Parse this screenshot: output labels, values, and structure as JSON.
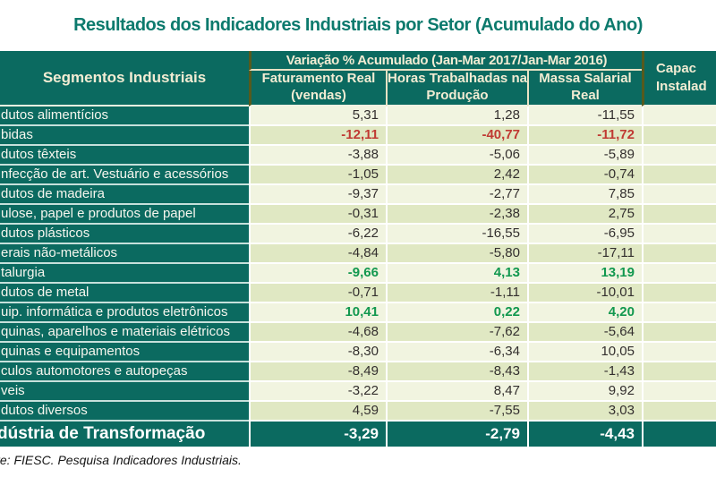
{
  "chart_data": {
    "type": "table",
    "title": "Resultados dos Indicadores Industriais por Setor (Acumulado do Ano)",
    "left_header": "Segmentos Industriais",
    "group_header": "Variação % Acumulado (Jan-Mar 2017/Jan-Mar 2016)",
    "value_columns": [
      "Faturamento Real (vendas)",
      "Horas Trabalhadas na Produção",
      "Massa Salarial Real"
    ],
    "capacity_header_lines": [
      "Capac",
      "Instalad"
    ],
    "rows": [
      {
        "segment": "dutos alimentícios",
        "values": [
          "5,31",
          "1,28",
          "-11,55"
        ],
        "emphasis": "none"
      },
      {
        "segment": "bidas",
        "values": [
          "-12,11",
          "-40,77",
          "-11,72"
        ],
        "emphasis": "red"
      },
      {
        "segment": "dutos têxteis",
        "values": [
          "-3,88",
          "-5,06",
          "-5,89"
        ],
        "emphasis": "none"
      },
      {
        "segment": "nfecção de art. Vestuário e acessórios",
        "values": [
          "-1,05",
          "2,42",
          "-0,74"
        ],
        "emphasis": "none"
      },
      {
        "segment": "dutos de madeira",
        "values": [
          "-9,37",
          "-2,77",
          "7,85"
        ],
        "emphasis": "none"
      },
      {
        "segment": "ulose, papel e produtos de papel",
        "values": [
          "-0,31",
          "-2,38",
          "2,75"
        ],
        "emphasis": "none"
      },
      {
        "segment": "dutos plásticos",
        "values": [
          "-6,22",
          "-16,55",
          "-6,95"
        ],
        "emphasis": "none"
      },
      {
        "segment": "erais não-metálicos",
        "values": [
          "-4,84",
          "-5,80",
          "-17,11"
        ],
        "emphasis": "none"
      },
      {
        "segment": "talurgia",
        "values": [
          "-9,66",
          "4,13",
          "13,19"
        ],
        "emphasis": "green"
      },
      {
        "segment": "dutos de metal",
        "values": [
          "-0,71",
          "-1,11",
          "-10,01"
        ],
        "emphasis": "none"
      },
      {
        "segment": "uip. informática e produtos eletrônicos",
        "values": [
          "10,41",
          "0,22",
          "4,20"
        ],
        "emphasis": "green"
      },
      {
        "segment": "quinas, aparelhos e materiais elétricos",
        "values": [
          "-4,68",
          "-7,62",
          "-5,64"
        ],
        "emphasis": "none"
      },
      {
        "segment": "quinas e equipamentos",
        "values": [
          "-8,30",
          "-6,34",
          "10,05"
        ],
        "emphasis": "none"
      },
      {
        "segment": "culos automotores e autopeças",
        "values": [
          "-8,49",
          "-8,43",
          "-1,43"
        ],
        "emphasis": "none"
      },
      {
        "segment": "veis",
        "values": [
          "-3,22",
          "8,47",
          "9,92"
        ],
        "emphasis": "none"
      },
      {
        "segment": "dutos diversos",
        "values": [
          "4,59",
          "-7,55",
          "3,03"
        ],
        "emphasis": "none"
      }
    ],
    "total_row": {
      "segment": "dústria de Transformação",
      "values": [
        "-3,29",
        "-2,79",
        "-4,43"
      ]
    },
    "source_note": "te: FIESC. Pesquisa Indicadores Industriais."
  },
  "colors": {
    "header_teal": "#0b6a60",
    "title_teal": "#0c7a6d",
    "header_text_cream": "#f2ecd3",
    "row_light": "#f1f4e0",
    "row_dark": "#e0e8c3",
    "negative_red": "#c03a33",
    "positive_green": "#12984f",
    "olive_border": "#565a1e"
  }
}
